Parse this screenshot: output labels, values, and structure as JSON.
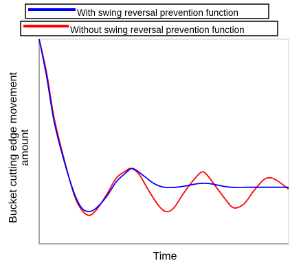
{
  "chart_data": {
    "type": "line",
    "title": "",
    "xlabel": "Time",
    "ylabel": "Bucket cutting edge movement amount",
    "xlim": [
      0,
      100
    ],
    "ylim": [
      0,
      100
    ],
    "x_ticks_shown": false,
    "y_ticks_shown": false,
    "grid": false,
    "legend_position": "top",
    "series": [
      {
        "name": "With swing reversal prevention function",
        "color": "#0000ff",
        "points": [
          [
            0,
            100
          ],
          [
            3,
            80
          ],
          [
            6,
            56
          ],
          [
            10,
            35
          ],
          [
            14,
            18
          ],
          [
            17,
            10
          ],
          [
            20,
            8
          ],
          [
            23,
            10
          ],
          [
            27,
            16
          ],
          [
            31,
            24
          ],
          [
            35,
            29
          ],
          [
            37,
            31
          ],
          [
            39,
            30
          ],
          [
            42,
            27
          ],
          [
            46,
            23
          ],
          [
            50,
            21
          ],
          [
            55,
            21
          ],
          [
            60,
            22
          ],
          [
            64,
            23
          ],
          [
            68,
            23
          ],
          [
            72,
            22
          ],
          [
            77,
            21
          ],
          [
            85,
            21
          ],
          [
            92,
            21
          ],
          [
            100,
            21
          ]
        ]
      },
      {
        "name": "Without swing reversal prevention function",
        "color": "#ff0000",
        "points": [
          [
            0,
            100
          ],
          [
            3,
            82
          ],
          [
            6,
            58
          ],
          [
            10,
            36
          ],
          [
            14,
            17
          ],
          [
            17,
            9
          ],
          [
            20,
            6
          ],
          [
            23,
            9
          ],
          [
            27,
            17
          ],
          [
            31,
            26
          ],
          [
            35,
            30
          ],
          [
            37,
            31
          ],
          [
            40,
            28
          ],
          [
            44,
            19
          ],
          [
            48,
            11
          ],
          [
            51,
            8
          ],
          [
            54,
            10
          ],
          [
            58,
            18
          ],
          [
            62,
            25
          ],
          [
            65,
            29
          ],
          [
            67,
            28
          ],
          [
            71,
            21
          ],
          [
            75,
            14
          ],
          [
            78,
            10
          ],
          [
            82,
            12
          ],
          [
            86,
            19
          ],
          [
            90,
            25
          ],
          [
            93,
            26
          ],
          [
            96,
            24
          ],
          [
            100,
            20
          ]
        ]
      }
    ]
  }
}
